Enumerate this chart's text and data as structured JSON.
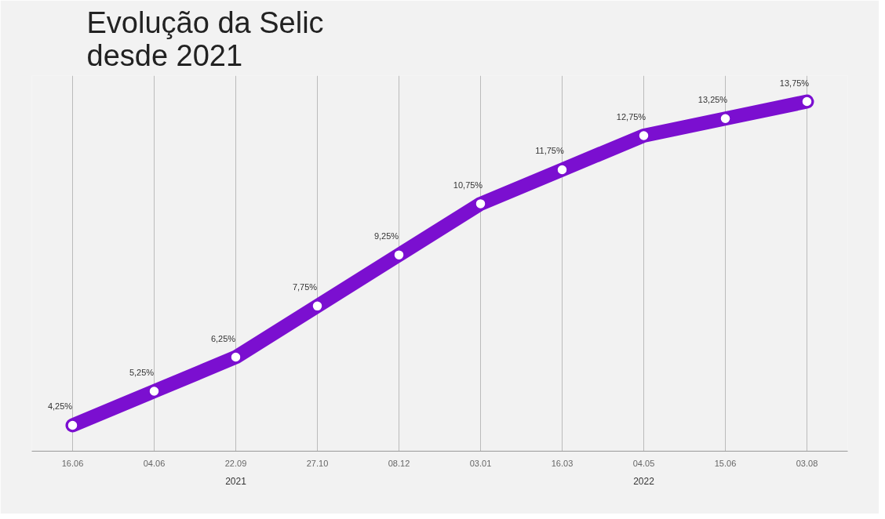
{
  "chart_data": {
    "type": "line",
    "title": "Evolução da Selic\ndesde 2021",
    "categories": [
      "16.06",
      "04.06",
      "22.09",
      "27.10",
      "08.12",
      "03.01",
      "16.03",
      "04.05",
      "15.06",
      "03.08"
    ],
    "series": [
      {
        "color": "#7b0fd0",
        "values": [
          4.25,
          5.25,
          6.25,
          7.75,
          9.25,
          10.75,
          11.75,
          12.75,
          13.25,
          13.75
        ],
        "value_labels": [
          "4,25%",
          "5,25%",
          "6,25%",
          "7,75%",
          "9,25%",
          "10,75%",
          "11,75%",
          "12,75%",
          "13,25%",
          "13,75%"
        ]
      }
    ],
    "annotations": [
      "2021",
      "2022"
    ],
    "marker": "circle",
    "line_style": "solid",
    "grid": "x",
    "tick_labels": "x"
  }
}
